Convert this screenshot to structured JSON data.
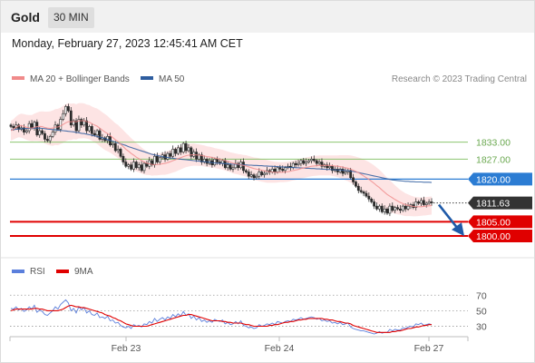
{
  "header": {
    "instrument": "Gold",
    "interval": "30 MIN"
  },
  "timestamp": "Monday, February 27, 2023 12:45:41 AM CET",
  "legend": {
    "bollinger": "MA 20 + Bollinger Bands",
    "ma50": "MA 50"
  },
  "credit": "Research © 2023 Trading Central",
  "rsi_legend": {
    "rsi": "RSI",
    "ma": "9MA"
  },
  "colors": {
    "bollinger": "#f08a8a",
    "band_fill": "#fde1e1",
    "ma50": "#2e5d9f",
    "rsi": "#5b7fdc",
    "resistance": "#8cc56f",
    "pivot": "#2b7cd3",
    "support": "#e00000",
    "current": "#333333",
    "arrow": "#1f5aa8"
  },
  "chart_data": [
    {
      "type": "candlestick",
      "x_labels": [
        "Feb 23",
        "Feb 24",
        "Feb 27"
      ],
      "ylim": [
        1793,
        1852
      ],
      "levels": [
        {
          "label": "1833.00",
          "value": 1833.0,
          "kind": "resistance"
        },
        {
          "label": "1827.00",
          "value": 1827.0,
          "kind": "resistance"
        },
        {
          "label": "1820.00",
          "value": 1820.0,
          "kind": "pivot"
        },
        {
          "label": "1811.63",
          "value": 1811.63,
          "kind": "current"
        },
        {
          "label": "1805.00",
          "value": 1805.0,
          "kind": "support"
        },
        {
          "label": "1800.00",
          "value": 1800.0,
          "kind": "support"
        }
      ],
      "close": [
        1838.5,
        1838.0,
        1839.0,
        1837.5,
        1838.0,
        1836.5,
        1837.0,
        1839.5,
        1838.0,
        1840.0,
        1835.5,
        1837.0,
        1836.0,
        1834.0,
        1833.5,
        1835.0,
        1836.5,
        1839.0,
        1837.5,
        1841.0,
        1843.0,
        1845.5,
        1844.0,
        1839.0,
        1840.5,
        1837.0,
        1841.0,
        1839.0,
        1840.5,
        1837.0,
        1838.5,
        1836.0,
        1835.5,
        1837.0,
        1834.0,
        1834.5,
        1833.5,
        1835.0,
        1832.0,
        1832.5,
        1830.0,
        1830.5,
        1828.0,
        1826.0,
        1824.5,
        1825.0,
        1823.5,
        1826.0,
        1824.0,
        1825.0,
        1823.0,
        1825.5,
        1824.5,
        1826.5,
        1825.0,
        1828.0,
        1826.0,
        1827.5,
        1828.5,
        1827.0,
        1829.0,
        1828.0,
        1830.5,
        1829.0,
        1831.0,
        1829.5,
        1832.5,
        1830.0,
        1831.0,
        1828.0,
        1829.5,
        1827.0,
        1828.5,
        1826.0,
        1827.0,
        1825.5,
        1826.5,
        1825.0,
        1827.0,
        1826.0,
        1825.5,
        1826.5,
        1824.0,
        1825.0,
        1823.5,
        1824.0,
        1825.5,
        1824.0,
        1826.0,
        1823.0,
        1822.5,
        1821.0,
        1821.5,
        1820.5,
        1821.0,
        1822.5,
        1821.5,
        1822.0,
        1823.0,
        1822.5,
        1823.5,
        1822.5,
        1824.0,
        1823.5,
        1823.0,
        1824.0,
        1824.5,
        1824.0,
        1825.5,
        1825.0,
        1825.5,
        1826.5,
        1825.5,
        1826.0,
        1826.5,
        1827.0,
        1826.5,
        1825.5,
        1826.0,
        1824.5,
        1825.0,
        1824.0,
        1824.5,
        1823.0,
        1823.5,
        1822.5,
        1823.5,
        1822.0,
        1822.5,
        1823.0,
        1820.5,
        1819.0,
        1817.5,
        1816.0,
        1815.5,
        1815.0,
        1814.0,
        1813.0,
        1812.0,
        1810.5,
        1809.5,
        1810.5,
        1808.5,
        1809.5,
        1808.0,
        1810.5,
        1809.0,
        1810.0,
        1809.5,
        1809.0,
        1810.5,
        1809.5,
        1810.5,
        1811.0,
        1810.0,
        1812.0,
        1811.5,
        1812.5,
        1811.0,
        1811.5,
        1812.0,
        1811.63
      ],
      "ma20": [
        1837.0,
        1837.5,
        1838.2,
        1838.7,
        1838.8,
        1838.5,
        1838.2,
        1838.0,
        1837.9,
        1838.2,
        1838.4,
        1838.5,
        1838.4,
        1838.1,
        1837.9,
        1837.8,
        1837.9,
        1838.3,
        1838.3,
        1838.7,
        1839.2,
        1839.8,
        1840.2,
        1840.1,
        1840.3,
        1840.1,
        1840.5,
        1840.5,
        1840.5,
        1840.2,
        1840.0,
        1839.5,
        1839.0,
        1838.6,
        1837.9,
        1837.2,
        1836.5,
        1836.0,
        1835.3,
        1834.6,
        1833.8,
        1833.2,
        1832.3,
        1831.4,
        1830.5,
        1829.8,
        1829.0,
        1828.4,
        1827.7,
        1827.2,
        1826.5,
        1826.0,
        1825.6,
        1825.4,
        1825.1,
        1825.1,
        1825.1,
        1825.2,
        1825.4,
        1825.5,
        1825.8,
        1826.1,
        1826.5,
        1826.8,
        1827.2,
        1827.5,
        1827.9,
        1828.2,
        1828.4,
        1828.5,
        1828.6,
        1828.5,
        1828.4,
        1828.3,
        1828.1,
        1827.9,
        1827.8,
        1827.6,
        1827.4,
        1827.2,
        1827.0,
        1826.8,
        1826.5,
        1826.2,
        1825.9,
        1825.6,
        1825.4,
        1825.2,
        1825.0,
        1824.8,
        1824.6,
        1824.3,
        1824.0,
        1823.7,
        1823.5,
        1823.3,
        1823.1,
        1822.9,
        1822.7,
        1822.6,
        1822.5,
        1822.4,
        1822.4,
        1822.4,
        1822.4,
        1822.5,
        1822.6,
        1822.8,
        1823.0,
        1823.2,
        1823.4,
        1823.7,
        1823.9,
        1824.1,
        1824.3,
        1824.5,
        1824.6,
        1824.7,
        1824.8,
        1824.8,
        1824.8,
        1824.8,
        1824.8,
        1824.7,
        1824.6,
        1824.5,
        1824.4,
        1824.2,
        1824.0,
        1823.8,
        1823.5,
        1823.1,
        1822.7,
        1822.2,
        1821.7,
        1821.1,
        1820.5,
        1819.9,
        1819.2,
        1818.5,
        1817.7,
        1817.0,
        1816.2,
        1815.4,
        1814.6,
        1814.0,
        1813.4,
        1812.8,
        1812.3,
        1811.8,
        1811.4,
        1811.0,
        1810.8,
        1810.6,
        1810.4,
        1810.3,
        1810.3,
        1810.3,
        1810.4,
        1810.5,
        1810.6,
        1810.7
      ],
      "ma50": [
        1837.3,
        1837.4,
        1837.5,
        1837.6,
        1837.7,
        1837.7,
        1837.8,
        1837.8,
        1837.8,
        1837.9,
        1837.9,
        1837.9,
        1837.8,
        1837.7,
        1837.6,
        1837.5,
        1837.4,
        1837.3,
        1837.2,
        1837.1,
        1837.0,
        1836.9,
        1836.8,
        1836.7,
        1836.6,
        1836.4,
        1836.3,
        1836.1,
        1836.0,
        1835.8,
        1835.6,
        1835.4,
        1835.2,
        1835.0,
        1834.7,
        1834.5,
        1834.2,
        1833.9,
        1833.6,
        1833.3,
        1833.0,
        1832.7,
        1832.4,
        1832.1,
        1831.8,
        1831.4,
        1831.1,
        1830.8,
        1830.5,
        1830.2,
        1829.9,
        1829.6,
        1829.3,
        1829.0,
        1828.7,
        1828.5,
        1828.3,
        1828.1,
        1827.9,
        1827.7,
        1827.6,
        1827.4,
        1827.3,
        1827.2,
        1827.1,
        1827.0,
        1826.9,
        1826.8,
        1826.7,
        1826.6,
        1826.5,
        1826.4,
        1826.3,
        1826.2,
        1826.1,
        1826.0,
        1825.9,
        1825.8,
        1825.7,
        1825.6,
        1825.6,
        1825.5,
        1825.4,
        1825.4,
        1825.3,
        1825.2,
        1825.2,
        1825.1,
        1825.1,
        1825.0,
        1825.0,
        1824.9,
        1824.9,
        1824.8,
        1824.8,
        1824.7,
        1824.7,
        1824.6,
        1824.6,
        1824.5,
        1824.5,
        1824.4,
        1824.4,
        1824.3,
        1824.3,
        1824.2,
        1824.2,
        1824.1,
        1824.1,
        1824.0,
        1824.0,
        1823.9,
        1823.9,
        1823.8,
        1823.8,
        1823.7,
        1823.7,
        1823.6,
        1823.6,
        1823.5,
        1823.5,
        1823.4,
        1823.4,
        1823.3,
        1823.3,
        1823.2,
        1823.2,
        1823.1,
        1823.0,
        1822.9,
        1822.8,
        1822.7,
        1822.5,
        1822.3,
        1822.1,
        1821.9,
        1821.7,
        1821.5,
        1821.3,
        1821.1,
        1820.9,
        1820.7,
        1820.5,
        1820.3,
        1820.1,
        1819.9,
        1819.7,
        1819.6,
        1819.5,
        1819.4,
        1819.3,
        1819.2,
        1819.2,
        1819.1,
        1819.1,
        1819.0,
        1819.0,
        1819.0,
        1818.9,
        1818.9,
        1818.9,
        1818.8
      ],
      "bb_width": [
        3.5,
        3.6,
        3.8,
        4.0,
        4.2,
        4.3,
        4.4,
        4.5,
        4.6,
        4.8,
        5.0,
        5.2,
        5.4,
        5.6,
        5.8,
        6.0,
        6.2,
        6.3,
        6.4,
        6.4,
        6.5,
        6.5,
        6.5,
        6.4,
        6.3,
        6.2,
        6.2,
        6.2,
        6.1,
        6.0,
        6.0,
        6.0,
        6.1,
        6.2,
        6.3,
        6.3,
        6.3,
        6.2,
        6.0,
        5.9,
        5.8,
        5.8,
        5.8,
        5.8,
        5.7,
        5.6,
        5.4,
        5.2,
        5.0,
        4.8,
        4.6,
        4.4,
        4.2,
        4.0,
        3.9,
        3.8,
        3.8,
        3.8,
        3.9,
        4.0,
        4.1,
        4.1,
        4.2,
        4.2,
        4.2,
        4.1,
        4.1,
        4.0,
        4.0,
        3.9,
        3.9,
        3.8,
        3.8,
        3.7,
        3.7,
        3.6,
        3.6,
        3.6,
        3.5,
        3.5,
        3.5,
        3.5,
        3.5,
        3.5,
        3.5,
        3.6,
        3.6,
        3.6,
        3.7,
        3.7,
        3.8,
        3.8,
        3.9,
        3.9,
        4.0,
        4.0,
        4.0,
        4.0,
        4.0,
        3.9,
        3.8,
        3.7,
        3.6,
        3.5,
        3.5,
        3.5,
        3.5,
        3.5,
        3.5,
        3.5,
        3.5,
        3.5,
        3.5,
        3.5,
        3.5,
        3.5,
        3.5,
        3.5,
        3.5,
        3.5,
        3.5,
        3.5,
        3.5,
        3.6,
        3.7,
        3.8,
        4.0,
        4.2,
        4.4,
        4.6,
        4.8,
        5.0,
        5.2,
        5.4,
        5.6,
        5.8,
        6.0,
        6.1,
        6.2,
        6.3,
        6.3,
        6.3,
        6.2,
        6.0,
        5.8,
        5.6,
        5.3,
        5.0,
        4.7,
        4.4,
        4.2,
        4.0,
        3.8,
        3.6,
        3.5,
        3.4,
        3.3,
        3.2,
        3.2,
        3.2,
        3.2,
        3.2
      ]
    },
    {
      "type": "line",
      "name": "RSI",
      "ylim": [
        20,
        82
      ],
      "y_ticks": [
        70,
        50,
        30
      ],
      "series": [
        {
          "name": "RSI",
          "values": [
            53,
            52,
            55,
            51,
            53,
            49,
            51,
            55,
            52,
            57,
            48,
            51,
            49,
            45,
            44,
            47,
            50,
            55,
            52,
            58,
            61,
            64,
            60,
            50,
            53,
            47,
            55,
            51,
            54,
            47,
            50,
            45,
            44,
            47,
            41,
            42,
            40,
            43,
            37,
            38,
            34,
            35,
            31,
            29,
            28,
            30,
            27,
            32,
            30,
            31,
            29,
            33,
            32,
            36,
            34,
            40,
            36,
            39,
            41,
            38,
            42,
            40,
            45,
            42,
            46,
            43,
            49,
            44,
            46,
            40,
            43,
            38,
            41,
            36,
            38,
            35,
            37,
            35,
            39,
            37,
            36,
            38,
            33,
            35,
            32,
            33,
            36,
            33,
            37,
            31,
            30,
            28,
            29,
            27,
            28,
            32,
            30,
            31,
            33,
            32,
            34,
            32,
            36,
            35,
            34,
            36,
            37,
            36,
            39,
            38,
            39,
            41,
            39,
            40,
            41,
            42,
            41,
            39,
            40,
            37,
            38,
            36,
            37,
            34,
            35,
            33,
            35,
            32,
            33,
            34,
            29,
            27,
            26,
            25,
            24,
            24,
            23,
            22,
            21,
            20,
            21,
            23,
            21,
            22,
            22,
            26,
            24,
            26,
            25,
            25,
            28,
            27,
            29,
            30,
            29,
            33,
            32,
            34,
            31,
            32,
            33,
            32
          ]
        },
        {
          "name": "9MA",
          "values": [
            50,
            51,
            52,
            52,
            52,
            52,
            52,
            52,
            52,
            53,
            53,
            52,
            52,
            51,
            50,
            50,
            50,
            50,
            50,
            51,
            52,
            54,
            56,
            57,
            56,
            55,
            55,
            54,
            54,
            53,
            52,
            51,
            50,
            49,
            48,
            47,
            45,
            44,
            43,
            41,
            40,
            38,
            37,
            35,
            33,
            32,
            31,
            30,
            30,
            30,
            30,
            30,
            30,
            31,
            32,
            33,
            34,
            35,
            36,
            37,
            38,
            39,
            40,
            41,
            42,
            43,
            44,
            44,
            45,
            45,
            44,
            43,
            42,
            41,
            40,
            39,
            38,
            37,
            37,
            37,
            37,
            36,
            36,
            35,
            35,
            34,
            34,
            34,
            34,
            33,
            32,
            32,
            31,
            30,
            30,
            30,
            30,
            30,
            30,
            31,
            31,
            32,
            32,
            33,
            34,
            35,
            35,
            36,
            36,
            37,
            38,
            38,
            39,
            39,
            40,
            40,
            40,
            40,
            40,
            40,
            39,
            39,
            38,
            38,
            37,
            36,
            36,
            35,
            34,
            34,
            33,
            31,
            30,
            29,
            28,
            27,
            26,
            25,
            24,
            23,
            22,
            22,
            22,
            22,
            22,
            22,
            23,
            23,
            24,
            24,
            25,
            26,
            27,
            27,
            28,
            29,
            29,
            30,
            31,
            31,
            32,
            32
          ]
        }
      ]
    }
  ]
}
